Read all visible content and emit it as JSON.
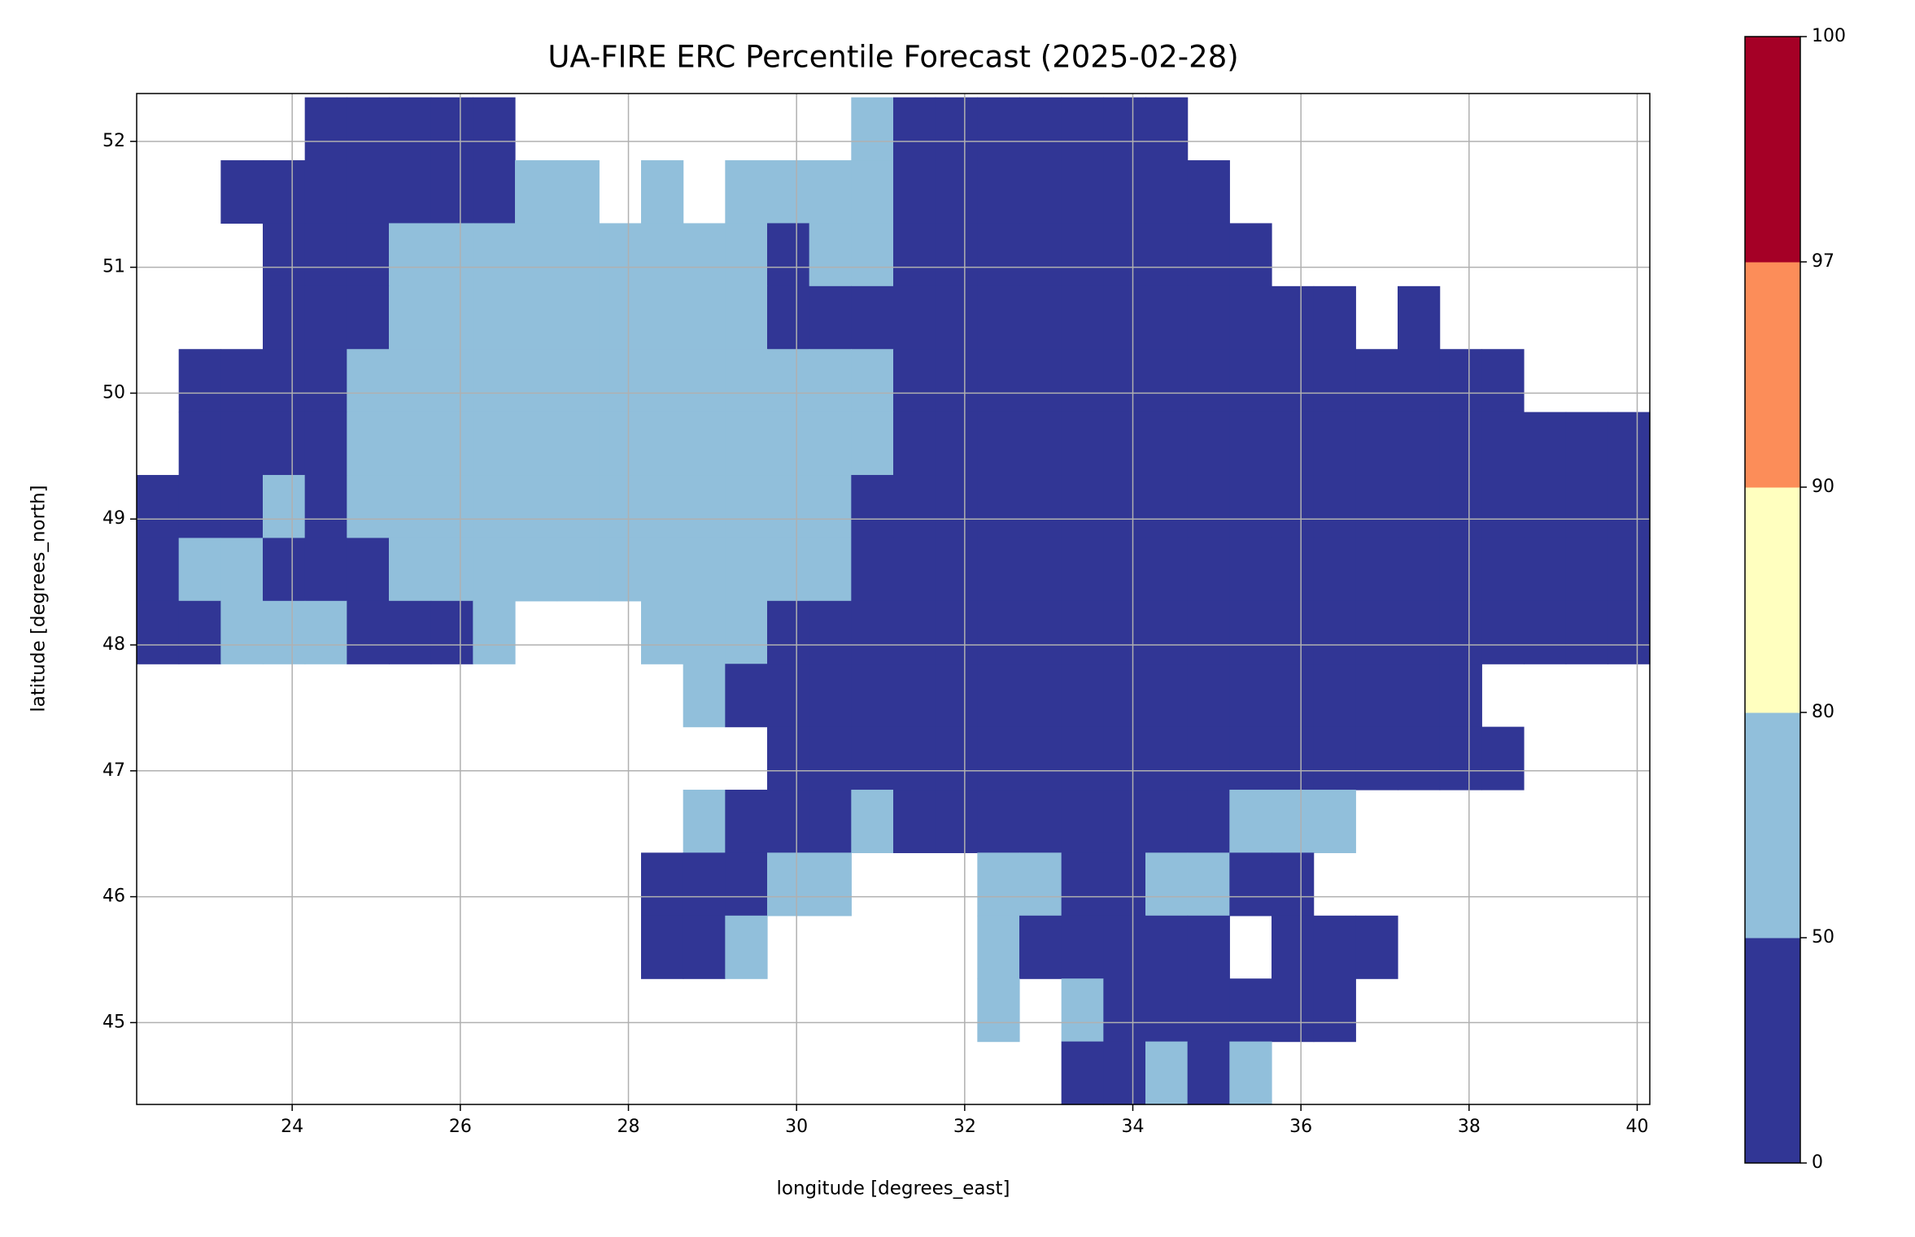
{
  "chart_data": {
    "type": "raster",
    "title": "UA-FIRE ERC Percentile Forecast (2025-02-28)",
    "x_label": "longitude [degrees_east]",
    "y_label": "latitude [degrees_north]",
    "xlim": [
      22.15,
      40.15
    ],
    "ylim": [
      44.35,
      52.38
    ],
    "xticks": [
      24,
      26,
      28,
      30,
      32,
      34,
      36,
      38,
      40
    ],
    "yticks": [
      45,
      46,
      47,
      48,
      49,
      50,
      51,
      52
    ],
    "grid": true,
    "raster": {
      "lon_start": 22.15,
      "lat_start": 52.35,
      "step": 0.5,
      "rows": [
        "....00000........10000000...........",
        "..000000011.1.111100000000..........",
        "...000111111111011000000000........",
        "...00011111111100000000000000.0.....",
        ".00001111111111111000000000000000...",
        ".00001111111111111000000000000000000",
        "000101111111111110000000000000000000",
        "011000111111111110000000000000000000",
        "001110001...111000000000000000000000",
        ".............1000000000000000000....",
        "...............000000000000000000...",
        ".............1000100000000111.......",
        "............00011...11001100........",
        "............001.....100000.000......",
        "....................1.1000000.......",
        "......................00101........."
      ]
    },
    "colorbar": {
      "bounds": [
        0,
        50,
        80,
        90,
        97,
        100
      ],
      "colors": [
        "#313695",
        "#91bfdb",
        "#ffffbf",
        "#fc8d59",
        "#a50026"
      ]
    }
  }
}
